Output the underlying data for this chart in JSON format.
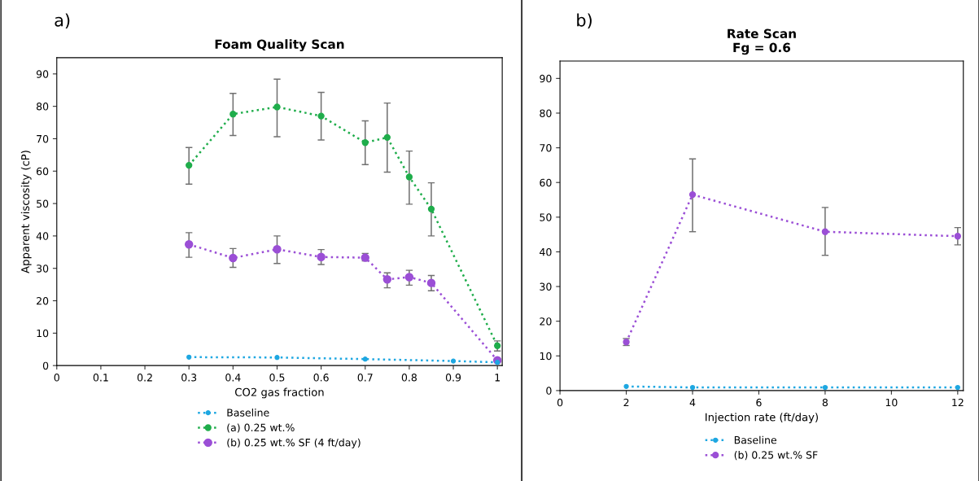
{
  "chart_data": [
    {
      "type": "line",
      "title": "Foam Quality Scan",
      "xlabel": "CO2 gas fraction",
      "ylabel": "Apparent viscosity (cP)",
      "annotations": [
        "a)"
      ],
      "xlim": [
        0,
        1.011
      ],
      "xticks": [
        0,
        0.1,
        0.2,
        0.3,
        0.4,
        0.5,
        0.6,
        0.7,
        0.8,
        0.9,
        1
      ],
      "ylim": [
        0,
        95
      ],
      "yticks": [
        0,
        10,
        20,
        30,
        40,
        50,
        60,
        70,
        80,
        90
      ],
      "grid": false,
      "legend": "bottom",
      "marker": "circle",
      "line_style": "dotted",
      "series": [
        {
          "name": "Baseline",
          "color": "#1ea7e1",
          "x": [
            0.3,
            0.5,
            0.7,
            0.9,
            1.0
          ],
          "values": [
            2.6,
            2.5,
            2.0,
            1.4,
            1.0
          ]
        },
        {
          "name": "(a) 0.25 wt.%",
          "color": "#1fad4b",
          "x": [
            0.3,
            0.4,
            0.5,
            0.6,
            0.7,
            0.75,
            0.8,
            0.85,
            1.0
          ],
          "values": [
            61.8,
            77.6,
            79.8,
            77.0,
            68.8,
            70.4,
            58.2,
            48.3,
            6.1
          ],
          "errors": [
            [
              56,
              67.3
            ],
            [
              71,
              84
            ],
            [
              70.6,
              88.4
            ],
            [
              69.6,
              84.3
            ],
            [
              62,
              75.5
            ],
            [
              59.7,
              81
            ],
            [
              49.8,
              66.2
            ],
            [
              40,
              56.4
            ],
            [
              4.5,
              7.6
            ]
          ]
        },
        {
          "name": "(b) 0.25 wt.% SF (4 ft/day)",
          "color": "#9b4fd6",
          "x": [
            0.3,
            0.4,
            0.5,
            0.6,
            0.7,
            0.75,
            0.8,
            0.85,
            1.0
          ],
          "values": [
            37.4,
            33.2,
            35.9,
            33.5,
            33.3,
            26.6,
            27.3,
            25.5,
            1.6
          ],
          "errors": [
            [
              33.4,
              41
            ],
            [
              30.3,
              36.1
            ],
            [
              31.5,
              40
            ],
            [
              31.2,
              35.8
            ],
            [
              32.3,
              34.6
            ],
            [
              24,
              28.6
            ],
            [
              24.8,
              29.4
            ],
            [
              23.1,
              27.8
            ],
            null
          ]
        }
      ]
    },
    {
      "type": "line",
      "title": "Rate Scan",
      "subtitle": "Fg = 0.6",
      "xlabel": "Injection rate (ft/day)",
      "annotations": [
        "b)"
      ],
      "xlim": [
        0,
        12.17
      ],
      "xticks": [
        0,
        2,
        4,
        6,
        8,
        10,
        12
      ],
      "ylim": [
        0,
        95
      ],
      "yticks": [
        0,
        10,
        20,
        30,
        40,
        50,
        60,
        70,
        80,
        90
      ],
      "grid": false,
      "legend": "bottom",
      "marker": "circle",
      "line_style": "dotted",
      "series": [
        {
          "name": "Baseline",
          "color": "#1ea7e1",
          "x": [
            2,
            4,
            8,
            12
          ],
          "values": [
            1.2,
            0.9,
            0.9,
            0.9
          ]
        },
        {
          "name": "(b) 0.25 wt.% SF",
          "color": "#9b4fd6",
          "x": [
            2,
            4,
            8,
            12
          ],
          "values": [
            14.0,
            56.5,
            45.8,
            44.5
          ],
          "errors": [
            [
              13,
              15
            ],
            [
              45.8,
              66.8
            ],
            [
              39,
              52.8
            ],
            [
              42,
              47
            ]
          ]
        }
      ]
    }
  ]
}
